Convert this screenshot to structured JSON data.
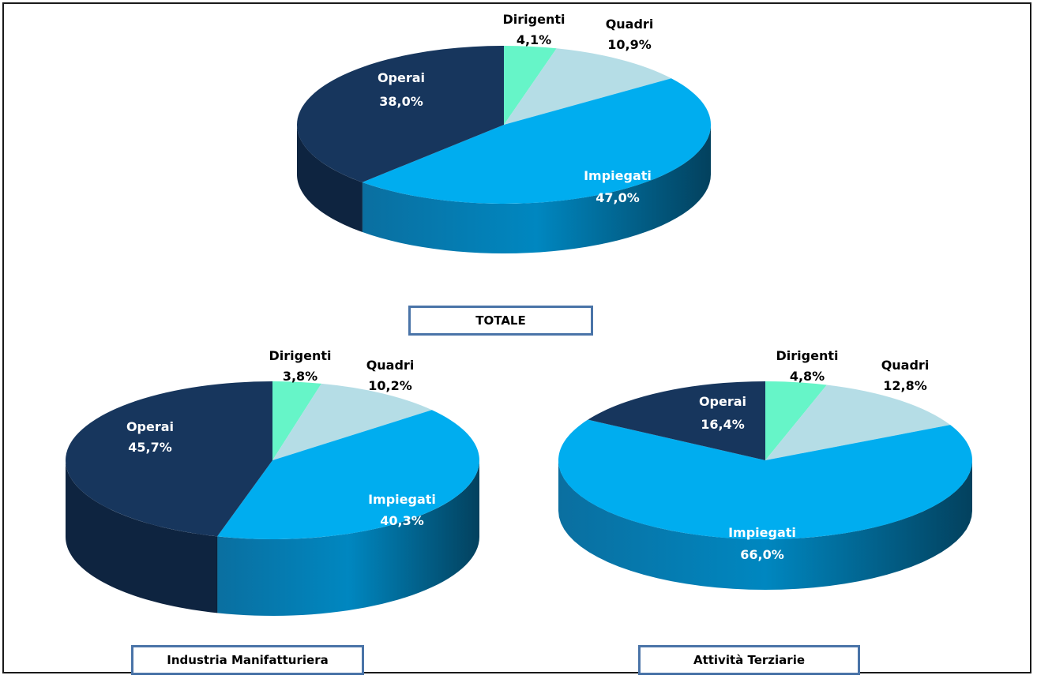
{
  "chart_data": [
    {
      "type": "pie",
      "title": "TOTALE",
      "slices": [
        {
          "label": "Dirigenti",
          "value": 4.1,
          "display": "4,1%",
          "color": "#66f5c8"
        },
        {
          "label": "Quadri",
          "value": 10.9,
          "display": "10,9%",
          "color": "#b5dde6"
        },
        {
          "label": "Impiegati",
          "value": 47.0,
          "display": "47,0%",
          "color": "#00adef"
        },
        {
          "label": "Operai",
          "value": 38.0,
          "display": "38,0%",
          "color": "#17365d"
        }
      ]
    },
    {
      "type": "pie",
      "title": "Industria Manifatturiera",
      "slices": [
        {
          "label": "Dirigenti",
          "value": 3.8,
          "display": "3,8%",
          "color": "#66f5c8"
        },
        {
          "label": "Quadri",
          "value": 10.2,
          "display": "10,2%",
          "color": "#b5dde6"
        },
        {
          "label": "Impiegati",
          "value": 40.3,
          "display": "40,3%",
          "color": "#00adef"
        },
        {
          "label": "Operai",
          "value": 45.7,
          "display": "45,7%",
          "color": "#17365d"
        }
      ]
    },
    {
      "type": "pie",
      "title": "Attività Terziarie",
      "slices": [
        {
          "label": "Dirigenti",
          "value": 4.8,
          "display": "4,8%",
          "color": "#66f5c8"
        },
        {
          "label": "Quadri",
          "value": 12.8,
          "display": "12,8%",
          "color": "#b5dde6"
        },
        {
          "label": "Impiegati",
          "value": 66.0,
          "display": "66,0%",
          "color": "#00adef"
        },
        {
          "label": "Operai",
          "value": 16.4,
          "display": "16,4%",
          "color": "#17365d"
        }
      ]
    }
  ]
}
